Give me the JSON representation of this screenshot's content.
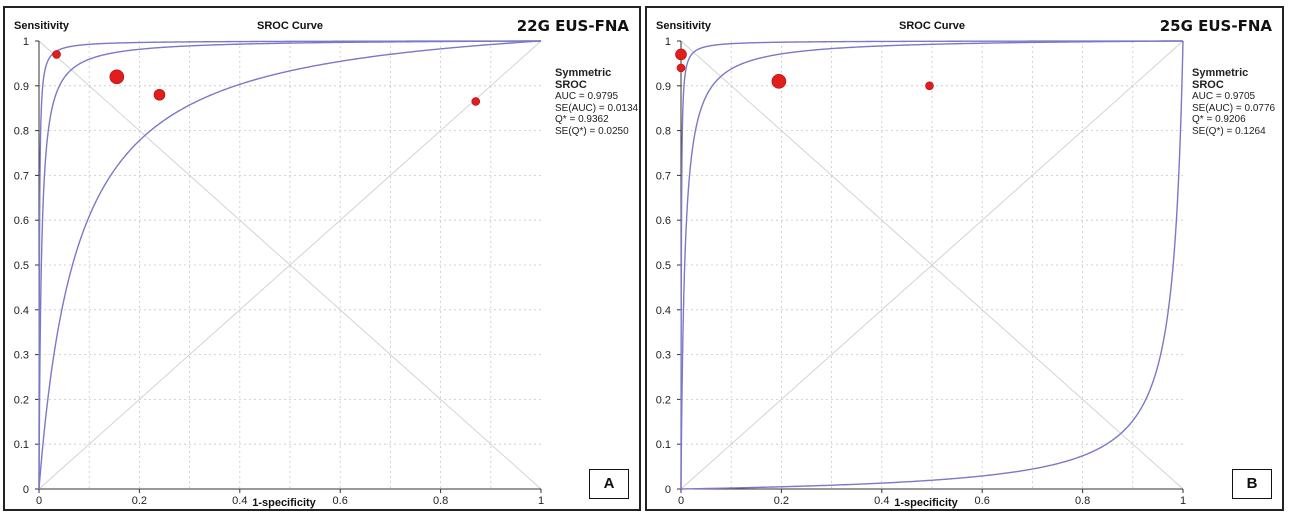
{
  "chart_data": [
    {
      "type": "scatter",
      "ylabel": "Sensitivity",
      "title": "SROC Curve",
      "study_label": "22G EUS-FNA",
      "xlabel": "1-specificity",
      "panel_letter": "A",
      "xlim": [
        0,
        1
      ],
      "ylim": [
        0,
        1
      ],
      "xticks": [
        "0",
        "0.2",
        "0.4",
        "0.6",
        "0.8",
        "1"
      ],
      "yticks": [
        "0",
        "0.1",
        "0.2",
        "0.3",
        "0.4",
        "0.5",
        "0.6",
        "0.7",
        "0.8",
        "0.9",
        "1"
      ],
      "grid": true,
      "sroc": {
        "header": "Symmetric SROC",
        "lines": [
          "AUC = 0.9795",
          "SE(AUC) = 0.0134",
          "Q* = 0.9362",
          "SE(Q*) = 0.0250"
        ]
      },
      "curves": [
        {
          "type": "symmetric-sroc",
          "dor": 212
        },
        {
          "type": "symmetric-sroc",
          "dor": 1200
        },
        {
          "type": "symmetric-sroc",
          "dor": 14
        }
      ],
      "points": [
        {
          "x": 0.035,
          "y": 0.97,
          "weight": "small"
        },
        {
          "x": 0.155,
          "y": 0.92,
          "weight": "large"
        },
        {
          "x": 0.24,
          "y": 0.88,
          "weight": "medium"
        },
        {
          "x": 0.87,
          "y": 0.865,
          "weight": "small"
        }
      ],
      "colors": {
        "curve": "#7b78c8",
        "point": "#e01e1e",
        "grid": "#c8c8c8"
      }
    },
    {
      "type": "scatter",
      "ylabel": "Sensitivity",
      "title": "SROC Curve",
      "study_label": "25G EUS-FNA",
      "xlabel": "1-specificity",
      "panel_letter": "B",
      "xlim": [
        0,
        1
      ],
      "ylim": [
        0,
        1
      ],
      "xticks": [
        "0",
        "0.2",
        "0.4",
        "0.6",
        "0.8",
        "1"
      ],
      "yticks": [
        "0",
        "0.1",
        "0.2",
        "0.3",
        "0.4",
        "0.5",
        "0.6",
        "0.7",
        "0.8",
        "0.9",
        "1"
      ],
      "grid": true,
      "sroc": {
        "header": "Symmetric SROC",
        "lines": [
          "AUC = 0.9705",
          "SE(AUC) = 0.0776",
          "Q* = 0.9206",
          "SE(Q*) = 0.1264"
        ]
      },
      "curves": [
        {
          "type": "symmetric-sroc",
          "dor": 135
        },
        {
          "type": "ci-band",
          "dor_low": 0.02,
          "dor_high": 1500
        }
      ],
      "points": [
        {
          "x": 0.0,
          "y": 0.97,
          "weight": "medium"
        },
        {
          "x": 0.0,
          "y": 0.94,
          "weight": "small"
        },
        {
          "x": 0.195,
          "y": 0.91,
          "weight": "large"
        },
        {
          "x": 0.495,
          "y": 0.9,
          "weight": "small"
        }
      ],
      "colors": {
        "curve": "#7b78c8",
        "point": "#e01e1e",
        "grid": "#c8c8c8"
      }
    }
  ]
}
